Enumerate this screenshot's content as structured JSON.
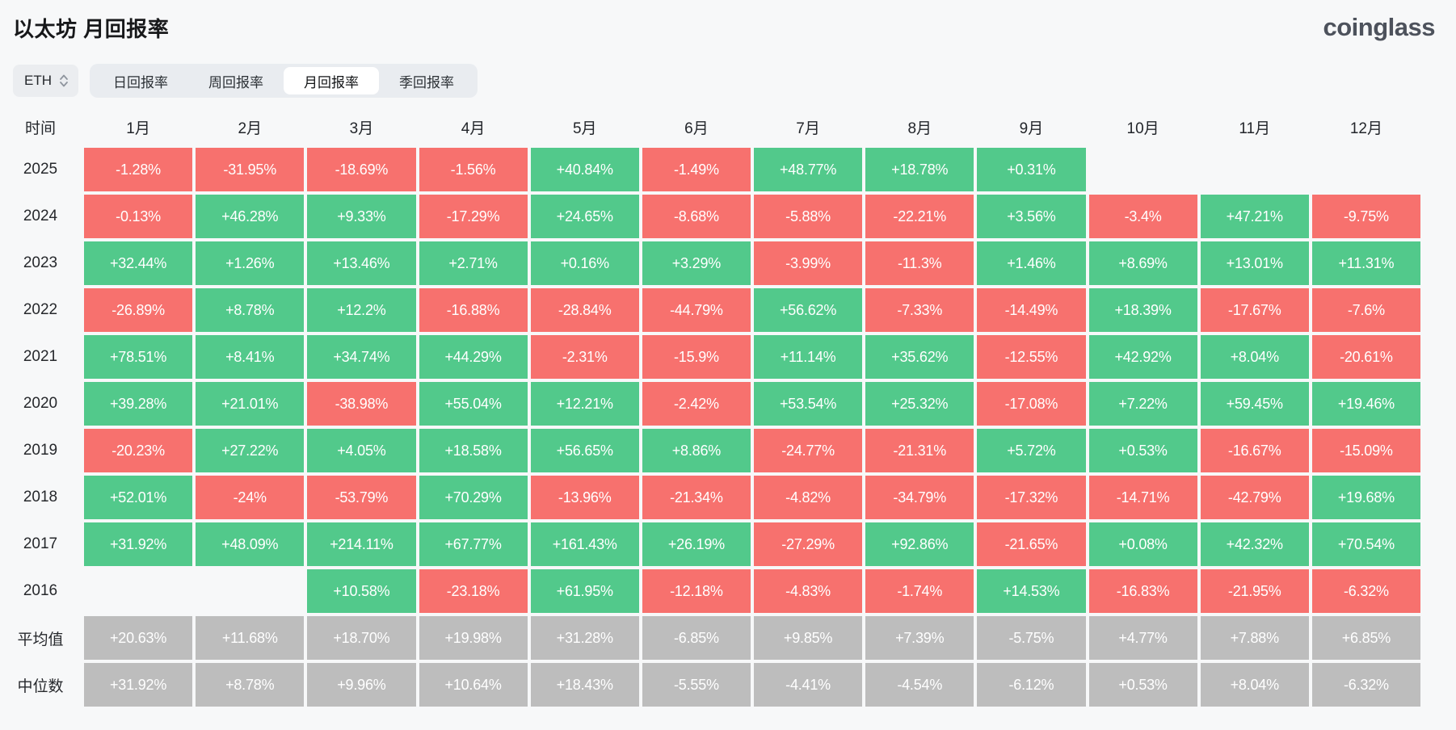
{
  "page": {
    "title": "以太坊 月回报率",
    "brand": "coinglass"
  },
  "controls": {
    "symbol": "ETH",
    "symbol_select_icon": "updown-chevron-icon",
    "tabs": [
      {
        "name": "tab-daily-returns",
        "label": "日回报率",
        "active": false
      },
      {
        "name": "tab-weekly-returns",
        "label": "周回报率",
        "active": false
      },
      {
        "name": "tab-monthly-returns",
        "label": "月回报率",
        "active": true
      },
      {
        "name": "tab-quarterly-returns",
        "label": "季回报率",
        "active": false
      }
    ]
  },
  "colors": {
    "positive": "#52c98b",
    "negative": "#f7716e",
    "summary": "#bdbdbd",
    "background": "#f7f8f9"
  },
  "chart_data": {
    "type": "heatmap",
    "title": "以太坊 月回报率",
    "time_header": "时间",
    "month_headers": [
      "1月",
      "2月",
      "3月",
      "4月",
      "5月",
      "6月",
      "7月",
      "8月",
      "9月",
      "10月",
      "11月",
      "12月"
    ],
    "rows": [
      {
        "label": "2025",
        "type": "year",
        "values": [
          "-1.28%",
          "-31.95%",
          "-18.69%",
          "-1.56%",
          "+40.84%",
          "-1.49%",
          "+48.77%",
          "+18.78%",
          "+0.31%",
          null,
          null,
          null
        ]
      },
      {
        "label": "2024",
        "type": "year",
        "values": [
          "-0.13%",
          "+46.28%",
          "+9.33%",
          "-17.29%",
          "+24.65%",
          "-8.68%",
          "-5.88%",
          "-22.21%",
          "+3.56%",
          "-3.4%",
          "+47.21%",
          "-9.75%"
        ]
      },
      {
        "label": "2023",
        "type": "year",
        "values": [
          "+32.44%",
          "+1.26%",
          "+13.46%",
          "+2.71%",
          "+0.16%",
          "+3.29%",
          "-3.99%",
          "-11.3%",
          "+1.46%",
          "+8.69%",
          "+13.01%",
          "+11.31%"
        ]
      },
      {
        "label": "2022",
        "type": "year",
        "values": [
          "-26.89%",
          "+8.78%",
          "+12.2%",
          "-16.88%",
          "-28.84%",
          "-44.79%",
          "+56.62%",
          "-7.33%",
          "-14.49%",
          "+18.39%",
          "-17.67%",
          "-7.6%"
        ]
      },
      {
        "label": "2021",
        "type": "year",
        "values": [
          "+78.51%",
          "+8.41%",
          "+34.74%",
          "+44.29%",
          "-2.31%",
          "-15.9%",
          "+11.14%",
          "+35.62%",
          "-12.55%",
          "+42.92%",
          "+8.04%",
          "-20.61%"
        ]
      },
      {
        "label": "2020",
        "type": "year",
        "values": [
          "+39.28%",
          "+21.01%",
          "-38.98%",
          "+55.04%",
          "+12.21%",
          "-2.42%",
          "+53.54%",
          "+25.32%",
          "-17.08%",
          "+7.22%",
          "+59.45%",
          "+19.46%"
        ]
      },
      {
        "label": "2019",
        "type": "year",
        "values": [
          "-20.23%",
          "+27.22%",
          "+4.05%",
          "+18.58%",
          "+56.65%",
          "+8.86%",
          "-24.77%",
          "-21.31%",
          "+5.72%",
          "+0.53%",
          "-16.67%",
          "-15.09%"
        ]
      },
      {
        "label": "2018",
        "type": "year",
        "values": [
          "+52.01%",
          "-24%",
          "-53.79%",
          "+70.29%",
          "-13.96%",
          "-21.34%",
          "-4.82%",
          "-34.79%",
          "-17.32%",
          "-14.71%",
          "-42.79%",
          "+19.68%"
        ]
      },
      {
        "label": "2017",
        "type": "year",
        "values": [
          "+31.92%",
          "+48.09%",
          "+214.11%",
          "+67.77%",
          "+161.43%",
          "+26.19%",
          "-27.29%",
          "+92.86%",
          "-21.65%",
          "+0.08%",
          "+42.32%",
          "+70.54%"
        ]
      },
      {
        "label": "2016",
        "type": "year",
        "values": [
          null,
          null,
          "+10.58%",
          "-23.18%",
          "+61.95%",
          "-12.18%",
          "-4.83%",
          "-1.74%",
          "+14.53%",
          "-16.83%",
          "-21.95%",
          "-6.32%"
        ]
      },
      {
        "label": "平均值",
        "type": "summary",
        "values": [
          "+20.63%",
          "+11.68%",
          "+18.70%",
          "+19.98%",
          "+31.28%",
          "-6.85%",
          "+9.85%",
          "+7.39%",
          "-5.75%",
          "+4.77%",
          "+7.88%",
          "+6.85%"
        ]
      },
      {
        "label": "中位数",
        "type": "summary",
        "values": [
          "+31.92%",
          "+8.78%",
          "+9.96%",
          "+10.64%",
          "+18.43%",
          "-5.55%",
          "-4.41%",
          "-4.54%",
          "-6.12%",
          "+0.53%",
          "+8.04%",
          "-6.32%"
        ]
      }
    ]
  }
}
